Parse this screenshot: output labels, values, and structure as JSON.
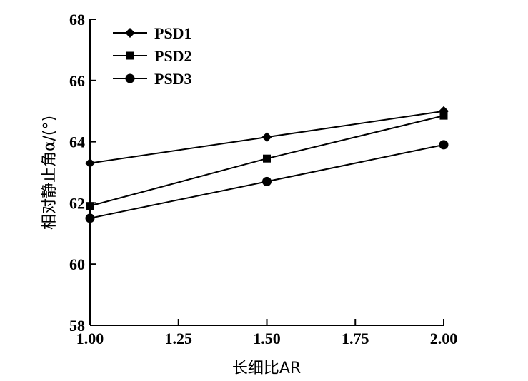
{
  "chart_data": {
    "type": "line",
    "xlabel": "长细比AR",
    "ylabel": "相对静止角α/(°)",
    "xlim": [
      1.0,
      2.0
    ],
    "ylim": [
      58,
      68
    ],
    "xticks": [
      1.0,
      1.25,
      1.5,
      1.75,
      2.0
    ],
    "xtick_labels": [
      "1.00",
      "1.25",
      "1.50",
      "1.75",
      "2.00"
    ],
    "yticks": [
      58,
      60,
      62,
      64,
      66,
      68
    ],
    "ytick_labels": [
      "58",
      "60",
      "62",
      "64",
      "66",
      "68"
    ],
    "x": [
      1.0,
      1.5,
      2.0
    ],
    "series": [
      {
        "name": "PSD1",
        "marker": "diamond",
        "values": [
          63.3,
          64.15,
          65.0
        ]
      },
      {
        "name": "PSD2",
        "marker": "square",
        "values": [
          61.9,
          63.45,
          64.85
        ]
      },
      {
        "name": "PSD3",
        "marker": "circle",
        "values": [
          61.5,
          62.7,
          63.9
        ]
      }
    ],
    "legend_position": "top-left",
    "grid": false,
    "line_color": "#000000"
  }
}
